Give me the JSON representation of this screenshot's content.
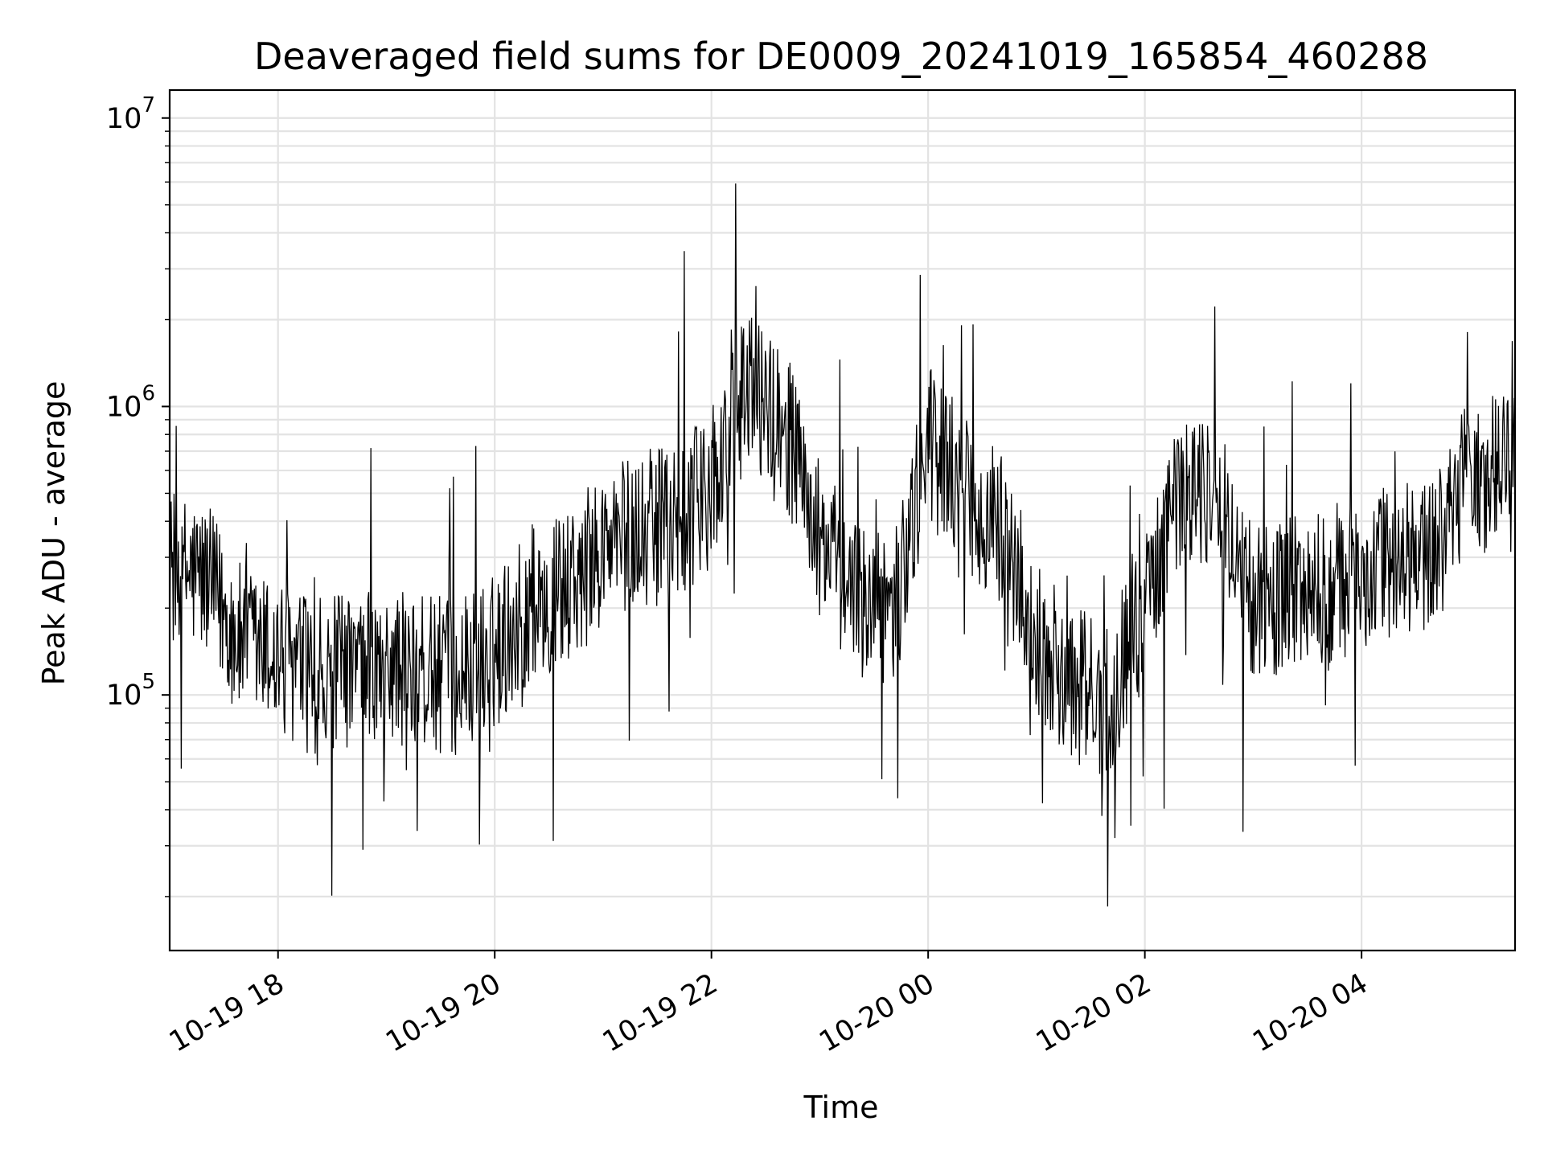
{
  "chart_data": {
    "type": "line",
    "title": "Deaveraged field sums for DE0009_20241019_165854_460288",
    "xlabel": "Time",
    "ylabel": "Peak ADU - average",
    "yscale": "log",
    "grid": true,
    "xlim": [
      "2024-10-19 17:00",
      "2024-10-20 05:25"
    ],
    "ylim": [
      13000,
      12500000
    ],
    "x_ticks": [
      {
        "value": "2024-10-19 18:00",
        "label": "10-19 18"
      },
      {
        "value": "2024-10-19 20:00",
        "label": "10-19 20"
      },
      {
        "value": "2024-10-19 22:00",
        "label": "10-19 22"
      },
      {
        "value": "2024-10-20 00:00",
        "label": "10-20 00"
      },
      {
        "value": "2024-10-20 02:00",
        "label": "10-20 02"
      },
      {
        "value": "2024-10-20 04:00",
        "label": "10-20 04"
      }
    ],
    "y_ticks": [
      {
        "value": 100000,
        "base": "10",
        "exp": "5"
      },
      {
        "value": 1000000,
        "base": "10",
        "exp": "6"
      },
      {
        "value": 10000000,
        "base": "10",
        "exp": "7"
      }
    ],
    "series": [
      {
        "color": "#000000",
        "x": [
          "2024-10-19 17:00",
          "2024-10-19 17:20",
          "2024-10-19 17:40",
          "2024-10-19 18:00",
          "2024-10-19 18:20",
          "2024-10-19 18:40",
          "2024-10-19 19:00",
          "2024-10-19 19:20",
          "2024-10-19 19:40",
          "2024-10-19 20:00",
          "2024-10-19 20:20",
          "2024-10-19 20:40",
          "2024-10-19 21:00",
          "2024-10-19 21:20",
          "2024-10-19 21:40",
          "2024-10-19 22:00",
          "2024-10-19 22:20",
          "2024-10-19 22:40",
          "2024-10-19 23:00",
          "2024-10-19 23:20",
          "2024-10-19 23:40",
          "2024-10-20 00:00",
          "2024-10-20 00:20",
          "2024-10-20 00:40",
          "2024-10-20 01:00",
          "2024-10-20 01:20",
          "2024-10-20 01:40",
          "2024-10-20 02:00",
          "2024-10-20 02:20",
          "2024-10-20 02:40",
          "2024-10-20 03:00",
          "2024-10-20 03:20",
          "2024-10-20 03:40",
          "2024-10-20 04:00",
          "2024-10-20 04:20",
          "2024-10-20 04:40",
          "2024-10-20 05:00",
          "2024-10-20 05:25"
        ],
        "y": [
          280000,
          250000,
          150000,
          135000,
          115000,
          120000,
          125000,
          120000,
          115000,
          140000,
          210000,
          230000,
          320000,
          380000,
          380000,
          520000,
          1200000,
          900000,
          350000,
          220000,
          180000,
          750000,
          520000,
          380000,
          160000,
          110000,
          95000,
          230000,
          520000,
          500000,
          210000,
          220000,
          240000,
          260000,
          290000,
          300000,
          620000,
          580000
        ]
      }
    ]
  }
}
